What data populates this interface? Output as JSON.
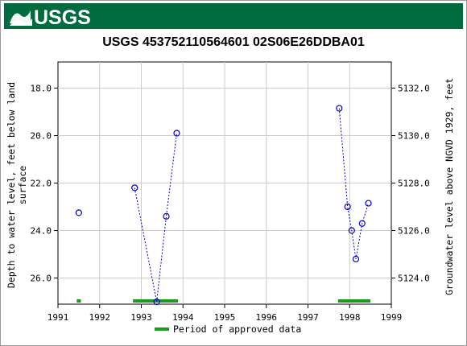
{
  "header": {
    "logo_text": "USGS",
    "bg_color": "#006b3f"
  },
  "chart_data": {
    "type": "scatter",
    "title": "USGS 453752110564601 02S06E26DDBA01",
    "ylabel_left_line1": "Depth to water level, feet below land",
    "ylabel_left_line2": "surface",
    "ylabel_right": "Groundwater level above NGVD 1929, feet",
    "xlim": [
      1991,
      1999
    ],
    "ylim_left": [
      27.1,
      16.9
    ],
    "x_ticks": [
      1991,
      1992,
      1993,
      1994,
      1995,
      1996,
      1997,
      1998,
      1999
    ],
    "x_tick_labels": [
      "1991",
      "1992",
      "1993",
      "1994",
      "1995",
      "1996",
      "1997",
      "1998",
      "1999"
    ],
    "y_ticks_left": [
      18,
      20,
      22,
      24,
      26
    ],
    "y_tick_labels_left": [
      "18.0",
      "20.0",
      "22.0",
      "24.0",
      "26.0"
    ],
    "y_tick_labels_right": [
      "5132.0",
      "5130.0",
      "5128.0",
      "5126.0",
      "5124.0"
    ],
    "right_axis_offset": 5150.0,
    "grid": true,
    "point_color": "#0000cc",
    "approved_color": "#1a9b1a",
    "series": [
      {
        "segments": [
          [
            [
              1991.5,
              23.25
            ]
          ],
          [
            [
              1992.84,
              22.2
            ],
            [
              1993.37,
              27.0
            ],
            [
              1993.6,
              23.4
            ],
            [
              1993.85,
              19.9
            ]
          ],
          [
            [
              1997.75,
              18.85
            ],
            [
              1997.95,
              23.0
            ],
            [
              1998.05,
              24.0
            ],
            [
              1998.15,
              25.2
            ],
            [
              1998.3,
              23.7
            ],
            [
              1998.45,
              22.85
            ]
          ]
        ]
      }
    ],
    "approved_periods": [
      [
        1991.45,
        1991.55
      ],
      [
        1992.8,
        1993.88
      ],
      [
        1997.72,
        1998.5
      ]
    ],
    "legend": {
      "label": "Period of approved data",
      "position": "bottom-center"
    }
  }
}
